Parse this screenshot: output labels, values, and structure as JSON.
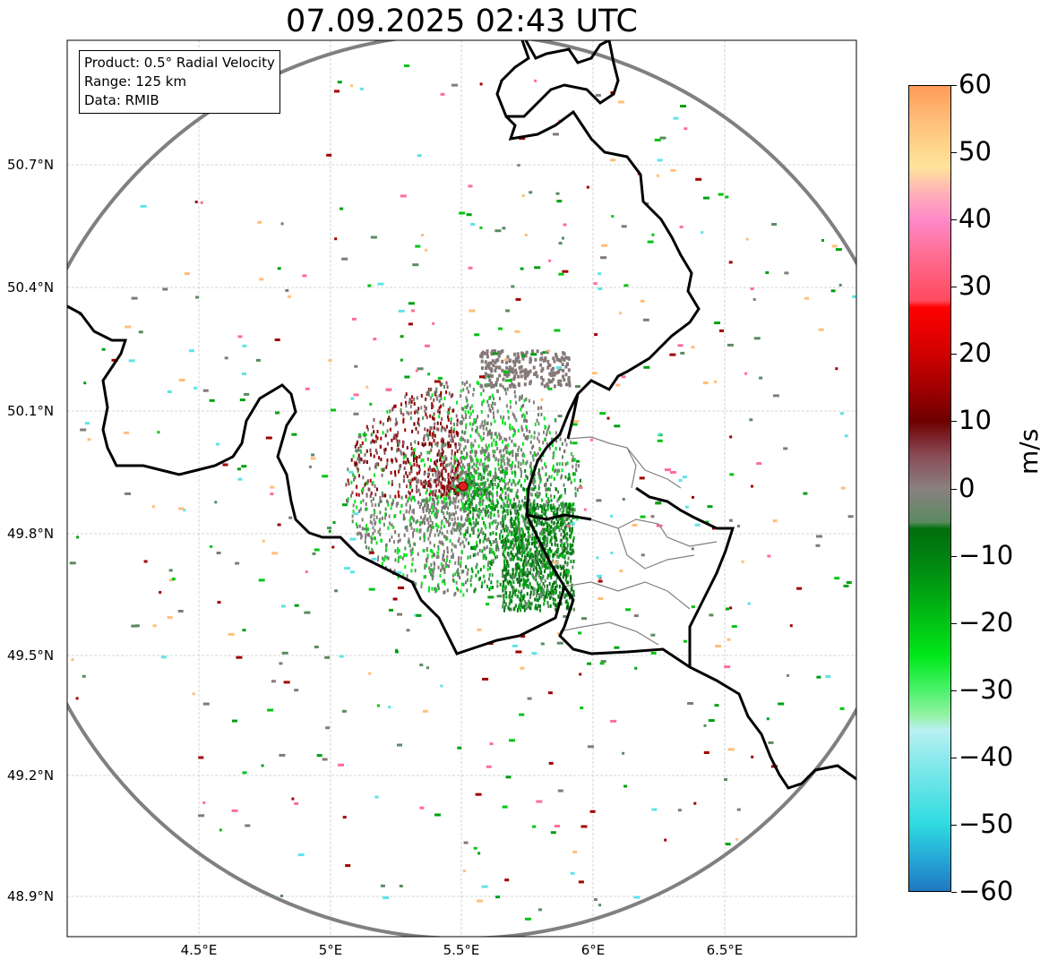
{
  "title": "07.09.2025 02:43 UTC",
  "info_box": {
    "product": "Product: 0.5° Radial Velocity",
    "range": "Range: 125 km",
    "data": "Data: RMIB"
  },
  "lat_labels": [
    "50.7°N",
    "50.4°N",
    "50.1°N",
    "49.8°N",
    "49.5°N",
    "49.2°N",
    "48.9°N"
  ],
  "lon_labels": [
    "4.5°E",
    "5°E",
    "5.5°E",
    "6°E",
    "6.5°E"
  ],
  "colorbar": {
    "unit": "m/s",
    "min": -60,
    "max": 60,
    "tick_labels": [
      "60",
      "50",
      "40",
      "30",
      "20",
      "10",
      "0",
      "−10",
      "−20",
      "−30",
      "−40",
      "−50",
      "−60"
    ],
    "stops": [
      {
        "v": -60,
        "c": "#1f78c1"
      },
      {
        "v": -55,
        "c": "#26a9d6"
      },
      {
        "v": -50,
        "c": "#2edbe0"
      },
      {
        "v": -45,
        "c": "#5ee3e6"
      },
      {
        "v": -40,
        "c": "#8fe9ec"
      },
      {
        "v": -36,
        "c": "#b8f0f2"
      },
      {
        "v": -34,
        "c": "#98f2a8"
      },
      {
        "v": -30,
        "c": "#4af26b"
      },
      {
        "v": -25,
        "c": "#00e81a"
      },
      {
        "v": -20,
        "c": "#00c414"
      },
      {
        "v": -15,
        "c": "#00a012"
      },
      {
        "v": -10,
        "c": "#008010"
      },
      {
        "v": -6,
        "c": "#006e0a"
      },
      {
        "v": -5,
        "c": "#5b8a60"
      },
      {
        "v": 0,
        "c": "#8a8080"
      },
      {
        "v": 5,
        "c": "#8a4a55"
      },
      {
        "v": 10,
        "c": "#6e0000"
      },
      {
        "v": 15,
        "c": "#a00000"
      },
      {
        "v": 20,
        "c": "#d00000"
      },
      {
        "v": 27,
        "c": "#ff0000"
      },
      {
        "v": 28,
        "c": "#ff4a5e"
      },
      {
        "v": 35,
        "c": "#ff6e94"
      },
      {
        "v": 40,
        "c": "#ff88c8"
      },
      {
        "v": 44,
        "c": "#ffb0b8"
      },
      {
        "v": 48,
        "c": "#ffe49a"
      },
      {
        "v": 55,
        "c": "#ffbe78"
      },
      {
        "v": 60,
        "c": "#ff9a58"
      }
    ]
  },
  "radar": {
    "site_marker_color": "#e02020",
    "range_ring_color": "#808080",
    "border_color": "#000000",
    "region_border_color": "#808080"
  }
}
